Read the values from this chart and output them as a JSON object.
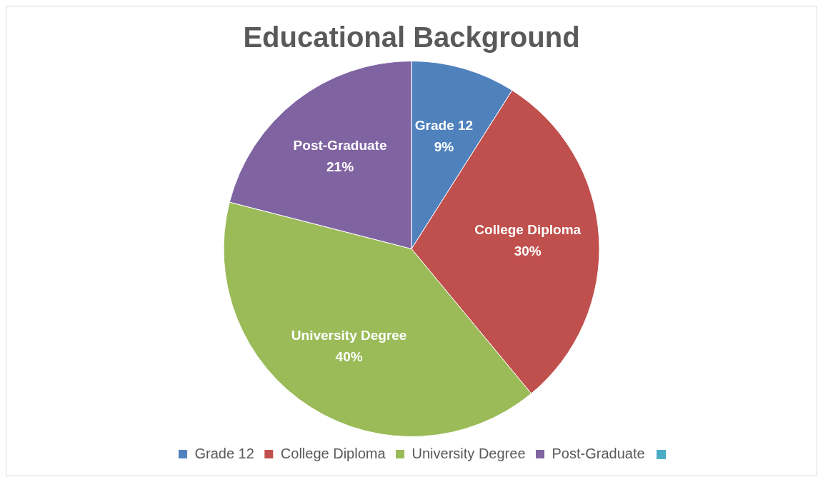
{
  "chart_data": {
    "type": "pie",
    "title": "Educational Background",
    "categories": [
      "Grade 12",
      "College Diploma",
      "University Degree",
      "Post-Graduate"
    ],
    "values": [
      9,
      30,
      40,
      21
    ],
    "value_labels": [
      "9%",
      "30%",
      "40%",
      "21%"
    ],
    "colors": [
      "#4f81bd",
      "#c0504d",
      "#9bbb59",
      "#8064a2"
    ],
    "legend": "bottom"
  }
}
